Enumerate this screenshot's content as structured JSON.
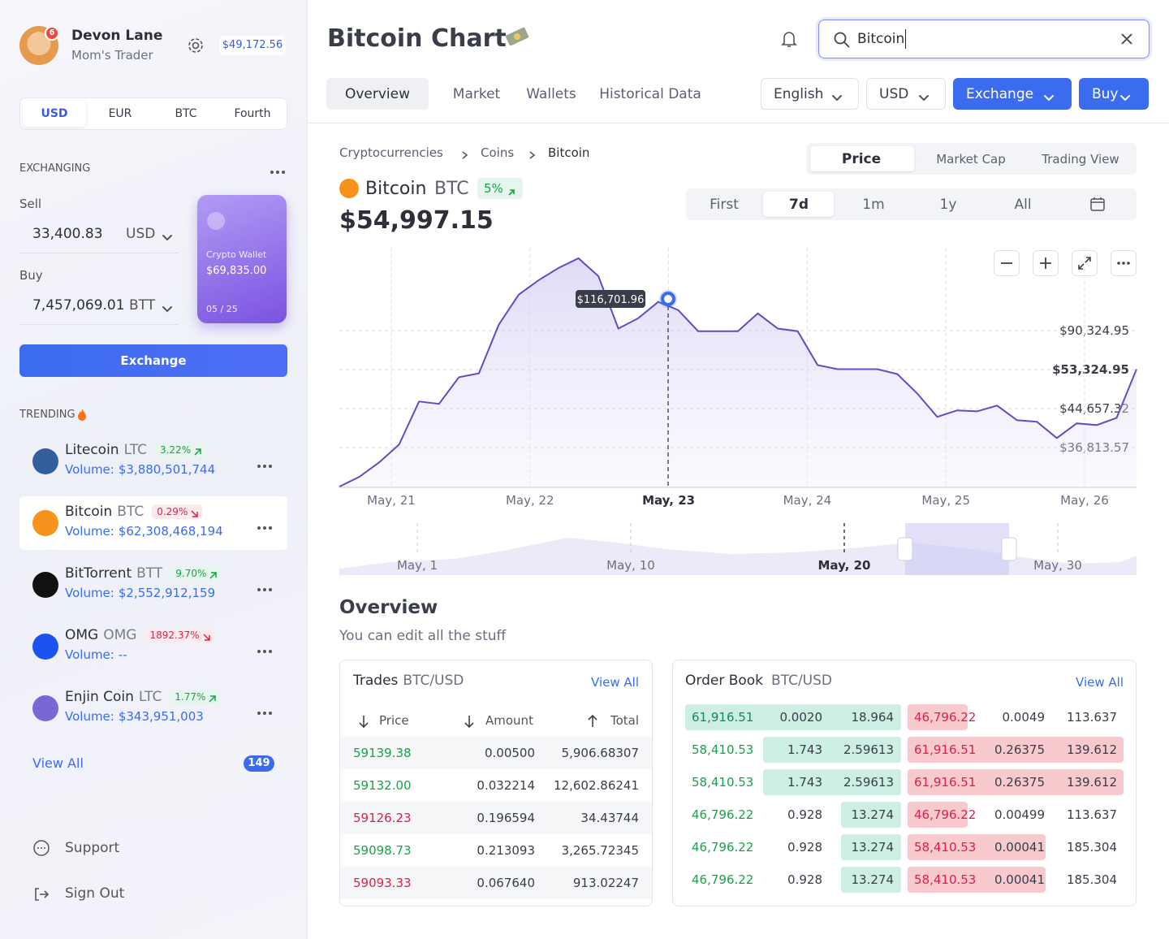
{
  "user": {
    "name": "Devon Lane",
    "role": "Mom's Trader",
    "badge": "6",
    "balance": "$49,172.56"
  },
  "currency_tabs": [
    "USD",
    "EUR",
    "BTC",
    "Fourth"
  ],
  "exchanging": {
    "heading": "EXCHANGING",
    "sell_label": "Sell",
    "sell_amount": "33,400.83",
    "sell_currency": "USD",
    "buy_label": "Buy",
    "buy_amount": "7,457,069.01",
    "buy_currency": "BTT",
    "button": "Exchange"
  },
  "card": {
    "name": "Crypto Wallet",
    "amount": "$69,835.00",
    "expiry": "05 / 25"
  },
  "trending": {
    "heading": "TRENDING",
    "items": [
      {
        "name": "Litecoin",
        "symbol": "LTC",
        "change": "3.22%",
        "direction": "up",
        "volume_label": "Volume:",
        "volume": "$3,880,501,744",
        "icon_color": "#345d9d"
      },
      {
        "name": "Bitcoin",
        "symbol": "BTC",
        "change": "0.29%",
        "direction": "down",
        "volume_label": "Volume:",
        "volume": "$62,308,468,194",
        "icon_color": "#f7931a"
      },
      {
        "name": "BitTorrent",
        "symbol": "BTT",
        "change": "9.70%",
        "direction": "up",
        "volume_label": "Volume:",
        "volume": "$2,552,912,159",
        "icon_color": "#111111"
      },
      {
        "name": "OMG",
        "symbol": "OMG",
        "change": "1892.37%",
        "direction": "down",
        "volume_label": "Volume:",
        "volume": "--",
        "icon_color": "#1a53f0"
      },
      {
        "name": "Enjin Coin",
        "symbol": "LTC",
        "change": "1.77%",
        "direction": "up",
        "volume_label": "Volume:",
        "volume": "$343,951,003",
        "icon_color": "#7866d5"
      }
    ],
    "view_all": "View All",
    "count": "149"
  },
  "footer_nav": [
    "Support",
    "Sign Out"
  ],
  "header": {
    "title": "Bitcoin Chart",
    "search": "Bitcoin",
    "tabs": [
      "Overview",
      "Market",
      "Wallets",
      "Historical Data"
    ],
    "language": "English",
    "currency": "USD",
    "exchange": "Exchange",
    "buy": "Buy"
  },
  "breadcrumb": [
    "Cryptocurrencies",
    "Coins",
    "Bitcoin"
  ],
  "chart_tabs": [
    "Price",
    "Market Cap",
    "Trading View"
  ],
  "coin": {
    "name": "Bitcoin",
    "symbol": "BTC",
    "change": "5%",
    "price": "$54,997.15"
  },
  "ranges": [
    "First",
    "7d",
    "1m",
    "1y",
    "All"
  ],
  "chart_data": {
    "type": "line",
    "color": "#5b4fc4",
    "values": [
      15400,
      20700,
      28500,
      38100,
      61300,
      60000,
      74400,
      76500,
      102700,
      118900,
      126700,
      133300,
      138500,
      128900,
      100600,
      106200,
      115000,
      110600,
      99200,
      99200,
      99200,
      108800,
      100600,
      99200,
      80900,
      78700,
      78700,
      78700,
      76100,
      65600,
      53000,
      56500,
      56000,
      59100,
      51200,
      50400,
      41600,
      49500,
      48600,
      52500,
      78700
    ],
    "ylim": [
      15000,
      142000
    ],
    "x_labels": [
      "May, 21",
      "May, 22",
      "May, 23",
      "May, 24",
      "May, 25",
      "May, 26"
    ],
    "price_labels": [
      "$90,324.95",
      "$53,324.95",
      "$44,657.32",
      "$36,813.57"
    ],
    "tooltip": "$116,701.96"
  },
  "navigator_labels": [
    "May, 1",
    "May, 10",
    "May, 20",
    "May, 30"
  ],
  "overview": {
    "title": "Overview",
    "subtitle": "You can edit all the stuff"
  },
  "trades": {
    "title": "Trades",
    "pair": "BTC/USD",
    "view_all": "View All",
    "columns": [
      "Price",
      "Amount",
      "Total"
    ],
    "rows": [
      [
        "59139.38",
        "0.00500",
        "5,906.68307"
      ],
      [
        "59132.00",
        "0.032214",
        "12,602.86241"
      ],
      [
        "59126.23",
        "0.196594",
        "34.43744"
      ],
      [
        "59098.73",
        "0.213093",
        "3,265.72345"
      ],
      [
        "59093.33",
        "0.067640",
        "913.02247"
      ]
    ],
    "price_colors": [
      "#16a34a",
      "#16a34a",
      "#e11d48",
      "#16a34a",
      "#e11d48"
    ]
  },
  "order_book": {
    "title": "Order Book",
    "pair": "BTC/USD",
    "view_all": "View All",
    "rows": [
      [
        "61,916.51",
        "0.0020",
        "18.964",
        "46,796.22",
        "0.0049",
        "113.637"
      ],
      [
        "58,410.53",
        "1.743",
        "2.59613",
        "61,916.51",
        "0.26375",
        "139.612"
      ],
      [
        "58,410.53",
        "1.743",
        "2.59613",
        "61,916.51",
        "0.26375",
        "139.612"
      ],
      [
        "46,796.22",
        "0.928",
        "13.274",
        "46,796.22",
        "0.00499",
        "113.637"
      ],
      [
        "46,796.22",
        "0.928",
        "13.274",
        "58,410.53",
        "0.00041",
        "185.304"
      ],
      [
        "46,796.22",
        "0.928",
        "13.274",
        "58,410.53",
        "0.00041",
        "185.304"
      ]
    ]
  }
}
